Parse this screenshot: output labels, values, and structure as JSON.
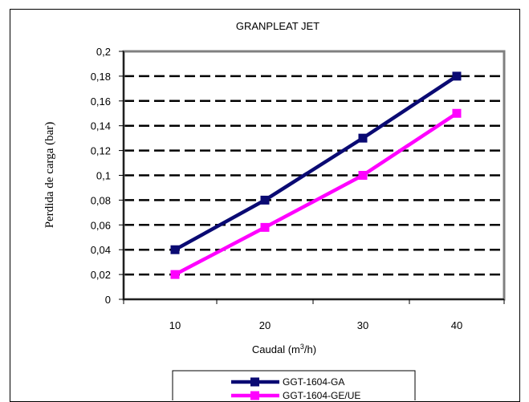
{
  "chart_data": {
    "type": "line",
    "title": "GRANPLEAT JET",
    "xlabel": "Caudal (m",
    "xlabel_sup": "3",
    "xlabel_suffix": "/h)",
    "ylabel": "Perdida de carga (bar)",
    "categories": [
      "10",
      "20",
      "30",
      "40"
    ],
    "x": [
      10,
      20,
      30,
      40
    ],
    "ylim": [
      0,
      0.2
    ],
    "yticks": [
      "0",
      "0,02",
      "0,04",
      "0,06",
      "0,08",
      "0,1",
      "0,12",
      "0,14",
      "0,16",
      "0,18",
      "0,2"
    ],
    "grid": "horizontal dashed",
    "legend_position": "bottom",
    "series": [
      {
        "name": "GGT-1604-GA",
        "color": "#0a0a73",
        "values": [
          0.04,
          0.08,
          0.13,
          0.18
        ]
      },
      {
        "name": "GGT-1604-GE/UE",
        "color": "#ff00ff",
        "values": [
          0.02,
          0.058,
          0.1,
          0.15
        ]
      }
    ],
    "plot_background": "#ffffff",
    "plot_border_color": "#808080"
  }
}
